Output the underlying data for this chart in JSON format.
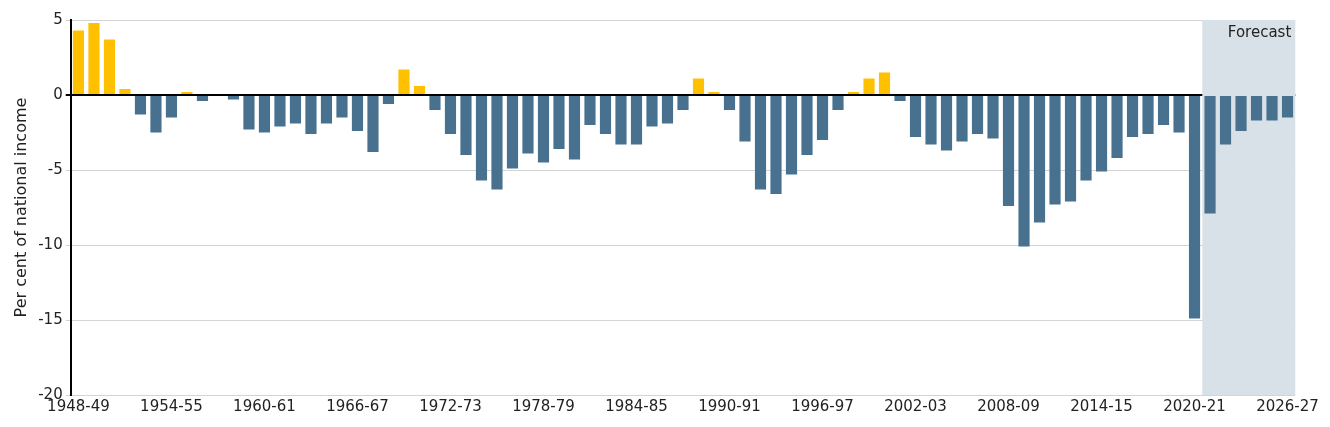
{
  "chart_data": {
    "type": "bar",
    "ylabel": "Per cent of national income",
    "categories": [
      "1948-49",
      null,
      null,
      null,
      null,
      null,
      "1954-55",
      null,
      null,
      null,
      null,
      null,
      "1960-61",
      null,
      null,
      null,
      null,
      null,
      "1966-67",
      null,
      null,
      null,
      null,
      null,
      "1972-73",
      null,
      null,
      null,
      null,
      null,
      "1978-79",
      null,
      null,
      null,
      null,
      null,
      "1984-85",
      null,
      null,
      null,
      null,
      null,
      "1990-91",
      null,
      null,
      null,
      null,
      null,
      "1996-97",
      null,
      null,
      null,
      null,
      null,
      "2002-03",
      null,
      null,
      null,
      null,
      null,
      "2008-09",
      null,
      null,
      null,
      null,
      null,
      "2014-15",
      null,
      null,
      null,
      null,
      null,
      "2020-21",
      null,
      null,
      null,
      null,
      null,
      "2026-27"
    ],
    "values": [
      4.3,
      4.8,
      3.7,
      0.4,
      -1.3,
      -2.5,
      -1.5,
      0.2,
      -0.4,
      0,
      -0.3,
      -2.3,
      -2.5,
      -2.1,
      -1.9,
      -2.6,
      -1.9,
      -1.5,
      -2.4,
      -3.8,
      -0.6,
      1.7,
      0.6,
      -1.0,
      -2.6,
      -4.0,
      -5.7,
      -6.3,
      -4.9,
      -3.9,
      -4.5,
      -3.6,
      -4.3,
      -2.0,
      -2.6,
      -3.3,
      -3.3,
      -2.1,
      -1.9,
      -1.0,
      1.1,
      0.2,
      -1.0,
      -3.1,
      -6.3,
      -6.6,
      -5.3,
      -4.0,
      -3.0,
      -1.0,
      0.2,
      1.1,
      1.5,
      -0.4,
      -2.8,
      -3.3,
      -3.7,
      -3.1,
      -2.6,
      -2.9,
      -7.4,
      -10.1,
      -8.5,
      -7.3,
      -7.1,
      -5.7,
      -5.1,
      -4.2,
      -2.8,
      -2.6,
      -2.0,
      -2.5,
      -14.9,
      -7.9,
      -3.3,
      -2.4,
      -1.7,
      -1.7,
      -1.5
    ],
    "colors": [
      "#ffc000",
      "#ffc000",
      "#ffc000",
      "#ffc000",
      "#47718f",
      "#47718f",
      "#47718f",
      "#ffc000",
      "#47718f",
      "#47718f",
      "#47718f",
      "#47718f",
      "#47718f",
      "#47718f",
      "#47718f",
      "#47718f",
      "#47718f",
      "#47718f",
      "#47718f",
      "#47718f",
      "#47718f",
      "#ffc000",
      "#ffc000",
      "#47718f",
      "#47718f",
      "#47718f",
      "#47718f",
      "#47718f",
      "#47718f",
      "#47718f",
      "#47718f",
      "#47718f",
      "#47718f",
      "#47718f",
      "#47718f",
      "#47718f",
      "#47718f",
      "#47718f",
      "#47718f",
      "#47718f",
      "#ffc000",
      "#ffc000",
      "#47718f",
      "#47718f",
      "#47718f",
      "#47718f",
      "#47718f",
      "#47718f",
      "#47718f",
      "#47718f",
      "#ffc000",
      "#ffc000",
      "#ffc000",
      "#47718f",
      "#47718f",
      "#47718f",
      "#47718f",
      "#47718f",
      "#47718f",
      "#47718f",
      "#47718f",
      "#47718f",
      "#47718f",
      "#47718f",
      "#47718f",
      "#47718f",
      "#47718f",
      "#47718f",
      "#47718f",
      "#47718f",
      "#47718f",
      "#47718f",
      "#47718f",
      "#47718f",
      "#47718f",
      "#47718f",
      "#47718f",
      "#47718f",
      "#47718f"
    ],
    "ylim": [
      -20,
      5
    ],
    "yticks": [
      -20,
      -15,
      -10,
      -5,
      0,
      5
    ],
    "grid": "y",
    "legend": false,
    "bands": [
      {
        "axis": "x",
        "from": "2020-21",
        "to": "2026-27",
        "label": "Forecast",
        "color": "#d9e1e8"
      }
    ]
  }
}
